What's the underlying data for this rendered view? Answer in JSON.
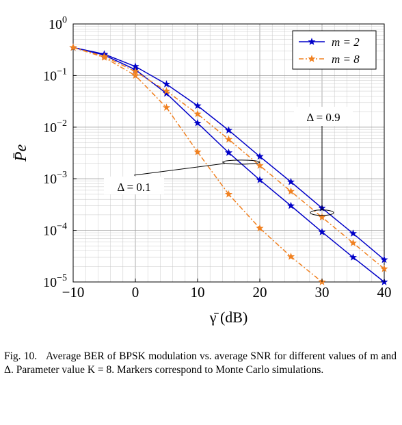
{
  "chart_data": {
    "type": "line",
    "xlabel": "γ̄ (dB)",
    "ylabel": "P̄e",
    "xlim": [
      -10,
      40
    ],
    "ylim": [
      1e-05,
      1
    ],
    "yscale": "log",
    "grid": true,
    "x_ticks": [
      "−10",
      "0",
      "10",
      "20",
      "30",
      "40"
    ],
    "y_ticks": [
      {
        "base": "10",
        "exp": "0"
      },
      {
        "base": "10",
        "exp": "−1"
      },
      {
        "base": "10",
        "exp": "−2"
      },
      {
        "base": "10",
        "exp": "−3"
      },
      {
        "base": "10",
        "exp": "−4"
      },
      {
        "base": "10",
        "exp": "−5"
      }
    ],
    "legend_position": "top-right",
    "series": [
      {
        "name": "m = 2",
        "color": "#0000c8",
        "style": "solid",
        "marker": "star",
        "x": [
          -10,
          -5,
          0,
          5,
          10,
          15,
          20,
          25,
          30,
          35,
          40
        ],
        "y": [
          0.35,
          0.26,
          0.15,
          0.068,
          0.026,
          0.0087,
          0.0027,
          0.00087,
          0.00027,
          8.7e-05,
          2.7e-05
        ]
      },
      {
        "name": "m = 2",
        "color": "#0000c8",
        "style": "solid",
        "marker": "star",
        "x": [
          -10,
          -5,
          0,
          5,
          10,
          15,
          20,
          25,
          30,
          35,
          40
        ],
        "y": [
          0.35,
          0.25,
          0.13,
          0.045,
          0.012,
          0.0032,
          0.00095,
          0.0003,
          9.3e-05,
          3e-05,
          1e-05
        ]
      },
      {
        "name": "m = 8",
        "color": "#f08020",
        "style": "dashdot",
        "marker": "star",
        "x": [
          -10,
          -5,
          0,
          5,
          10,
          15,
          20,
          25,
          30,
          35,
          40
        ],
        "y": [
          0.35,
          0.235,
          0.12,
          0.05,
          0.018,
          0.0058,
          0.0018,
          0.00057,
          0.00018,
          5.7e-05,
          1.8e-05
        ]
      },
      {
        "name": "m = 8",
        "color": "#f08020",
        "style": "dashdot",
        "marker": "star",
        "x": [
          -10,
          -5,
          0,
          5,
          10,
          15,
          20,
          25,
          30
        ],
        "y": [
          0.35,
          0.225,
          0.1,
          0.024,
          0.0033,
          0.0005,
          0.00011,
          3.1e-05,
          1e-05
        ]
      }
    ],
    "legend": [
      {
        "label": "m = 2",
        "color": "#0000c8",
        "style": "solid"
      },
      {
        "label": "m = 8",
        "color": "#f08020",
        "style": "dashdot"
      }
    ],
    "annotations": [
      {
        "text": "Δ = 0.9",
        "target_x": 30,
        "target_y": 0.00022
      },
      {
        "text": "Δ = 0.1",
        "target_x": 17,
        "target_y": 0.0021
      }
    ]
  },
  "caption": {
    "label": "Fig. 10.",
    "text": "Average BER of BPSK modulation vs. average SNR for different values of m and Δ. Parameter value K = 8. Markers correspond to Monte Carlo simulations."
  }
}
